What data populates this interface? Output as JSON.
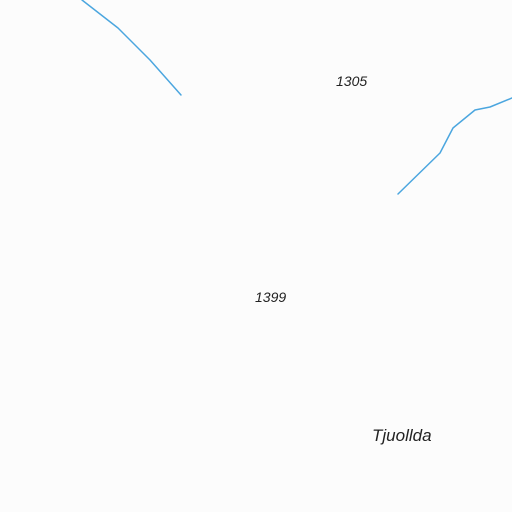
{
  "map": {
    "background_color": "#fcfcfc",
    "stream_color": "#4ba6df",
    "label_color": "#222222",
    "labels": {
      "elevation_1": "1305",
      "elevation_2": "1399",
      "place_name": "Tjuollda"
    }
  }
}
